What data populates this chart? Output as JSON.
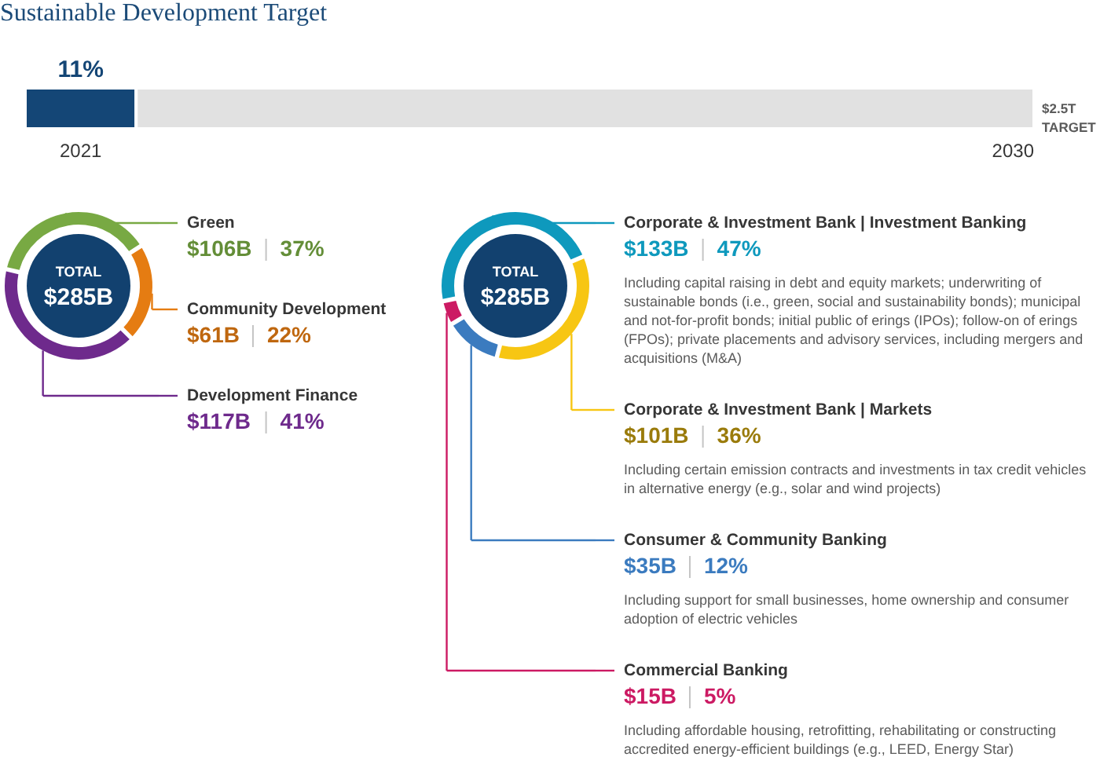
{
  "chart_data": [
    {
      "type": "bar",
      "title": "Sustainable Development Target",
      "orientation": "horizontal",
      "stacked": true,
      "categories": [
        null
      ],
      "series": [
        {
          "color": "#144676",
          "values": [
            11
          ],
          "value_labels": [
            "11%"
          ]
        },
        {
          "color": "#e1e1e1",
          "values": [
            89
          ]
        }
      ],
      "xlim": [
        0,
        100
      ],
      "tick_labels": false,
      "annotations": [
        "2021",
        "2030",
        "$2.5T\nTARGET"
      ]
    },
    {
      "type": "donut",
      "categories": [
        "Green",
        "Community Development",
        "Development Finance"
      ],
      "values": [
        106,
        61,
        117
      ],
      "colors": [
        "#78a943",
        "#e57c12",
        "#6e2a8c"
      ],
      "value_labels": [
        "$106B",
        "$61B",
        "$117B"
      ],
      "legend": "right",
      "annotations": [
        "TOTAL",
        "$285B",
        "37%",
        "22%",
        "41%"
      ]
    },
    {
      "type": "donut",
      "categories": [
        "Corporate & Investment Bank | Investment Banking",
        "Corporate & Investment Bank | Markets",
        "Consumer & Community Banking",
        "Commercial Banking"
      ],
      "values": [
        133,
        101,
        35,
        15
      ],
      "colors": [
        "#0e99bd",
        "#f7c613",
        "#3b7bbf",
        "#cc1a63"
      ],
      "value_labels": [
        "$133B",
        "$101B",
        "$35B",
        "$15B"
      ],
      "legend": "right",
      "annotations": [
        "TOTAL",
        "$285B",
        "47%",
        "36%",
        "12%",
        "5%",
        "Including capital raising in debt and equity markets; underwriting of sustainable bonds (i.e., green, social and sustainability bonds); municipal and not-for-profit bonds; initial public of erings (IPOs); follow-on of erings (FPOs); private placements and advisory services, including mergers and acquisitions (M&A)",
        "Including certain emission contracts and investments in tax credit vehicles in alternative energy (e.g., solar and wind projects)",
        "Including support for small businesses, home ownership and consumer adoption of electric vehicles",
        "Including affordable housing, retrofitting, rehabilitating or constructing accredited energy-efficient buildings (e.g., LEED, Energy Star)"
      ]
    }
  ]
}
